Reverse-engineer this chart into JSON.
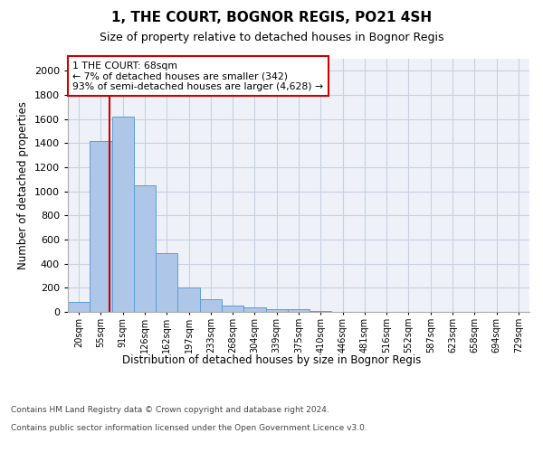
{
  "title": "1, THE COURT, BOGNOR REGIS, PO21 4SH",
  "subtitle": "Size of property relative to detached houses in Bognor Regis",
  "xlabel": "Distribution of detached houses by size in Bognor Regis",
  "ylabel": "Number of detached properties",
  "bin_labels": [
    "20sqm",
    "55sqm",
    "91sqm",
    "126sqm",
    "162sqm",
    "197sqm",
    "233sqm",
    "268sqm",
    "304sqm",
    "339sqm",
    "375sqm",
    "410sqm",
    "446sqm",
    "481sqm",
    "516sqm",
    "552sqm",
    "587sqm",
    "623sqm",
    "658sqm",
    "694sqm",
    "729sqm"
  ],
  "bar_values": [
    80,
    1420,
    1620,
    1050,
    490,
    205,
    105,
    50,
    35,
    25,
    20,
    5,
    0,
    0,
    0,
    0,
    0,
    0,
    0,
    0,
    0
  ],
  "bar_color": "#aec6e8",
  "bar_edge_color": "#5a9fd4",
  "grid_color": "#c8d0e0",
  "bg_color": "#eef2f8",
  "red_line_x": 1.38,
  "annotation_text": "1 THE COURT: 68sqm\n← 7% of detached houses are smaller (342)\n93% of semi-detached houses are larger (4,628) →",
  "annotation_box_color": "#ffffff",
  "annotation_border_color": "#cc0000",
  "ylim": [
    0,
    2100
  ],
  "yticks": [
    0,
    200,
    400,
    600,
    800,
    1000,
    1200,
    1400,
    1600,
    1800,
    2000
  ],
  "footer_line1": "Contains HM Land Registry data © Crown copyright and database right 2024.",
  "footer_line2": "Contains public sector information licensed under the Open Government Licence v3.0."
}
